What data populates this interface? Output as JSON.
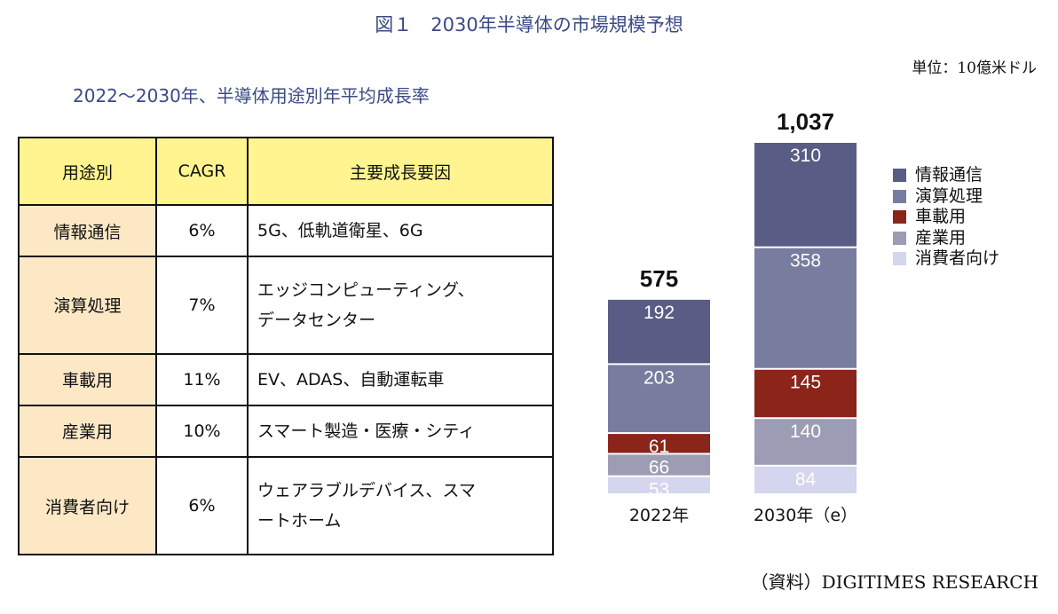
{
  "figure_title": "図１　2030年半導体の市場規模予想",
  "unit": "単位：10億米ドル",
  "table_title": "2022〜2030年、半導体用途別年平均成長率",
  "table": {
    "headers": [
      "用途別",
      "CAGR",
      "主要成長要因"
    ],
    "rows": [
      {
        "use": "情報通信",
        "cagr": "6%",
        "factor_lines": [
          "5G、低軌道衛星、6G"
        ]
      },
      {
        "use": "演算処理",
        "cagr": "7%",
        "factor_lines": [
          "エッジコンピューティング、",
          "データセンター"
        ]
      },
      {
        "use": "車載用",
        "cagr": "11%",
        "factor_lines": [
          "EV、ADAS、自動運転車"
        ]
      },
      {
        "use": "産業用",
        "cagr": "10%",
        "factor_lines": [
          "スマート製造・医療・シティ"
        ]
      },
      {
        "use": "消費者向け",
        "cagr": "6%",
        "factor_lines": [
          "ウェアラブルデバイス、スマ",
          "ートホーム"
        ]
      }
    ]
  },
  "source": "（資料）DIGITIMES RESEARCH",
  "colors": {
    "情報通信": "#595c84",
    "演算処理": "#787c9e",
    "車載用": "#8b2419",
    "産業用": "#9c9cb4",
    "消費者向け": "#d4d5ee",
    "title_blue": "#3a4a86",
    "header_yellow": "#fff48f",
    "row_peach": "#fde8c6"
  },
  "chart_data": {
    "type": "bar",
    "stacked": true,
    "categories": [
      "2022年",
      "2030年（e）"
    ],
    "totals": [
      "575",
      "1,037"
    ],
    "series": [
      {
        "name": "情報通信",
        "values": [
          192,
          310
        ]
      },
      {
        "name": "演算処理",
        "values": [
          203,
          358
        ]
      },
      {
        "name": "車載用",
        "values": [
          61,
          145
        ]
      },
      {
        "name": "産業用",
        "values": [
          66,
          140
        ]
      },
      {
        "name": "消費者向け",
        "values": [
          53,
          84
        ]
      }
    ],
    "legend_position": "right",
    "grid": false
  }
}
